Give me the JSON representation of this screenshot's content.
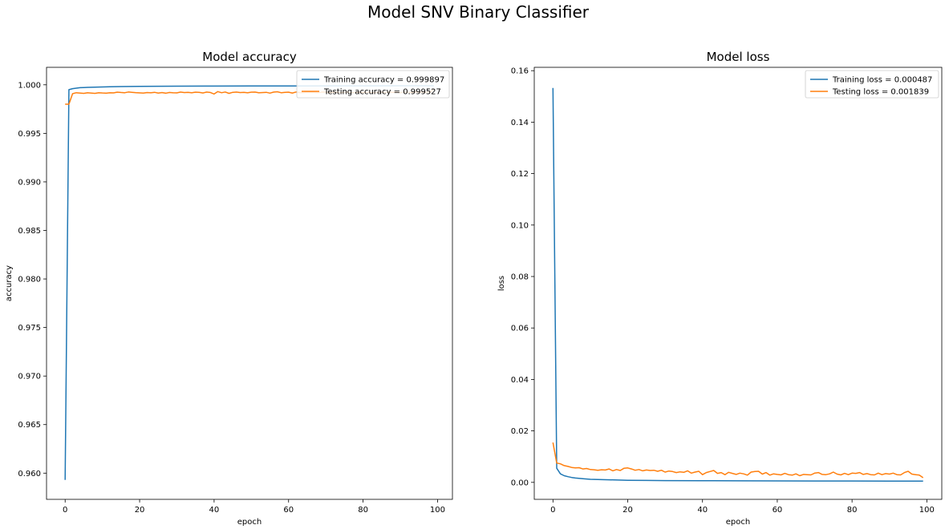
{
  "figure": {
    "suptitle": "Model SNV Binary Classifier"
  },
  "colors": {
    "train": "#1f77b4",
    "test": "#ff7f0e"
  },
  "chart_data": [
    {
      "type": "line",
      "title": "Model accuracy",
      "xlabel": "epoch",
      "ylabel": "accuracy",
      "xlim": [
        -5,
        104
      ],
      "ylim": [
        0.9573,
        1.0018
      ],
      "xticks": [
        0,
        20,
        40,
        60,
        80,
        100
      ],
      "yticks": [
        0.96,
        0.965,
        0.97,
        0.975,
        0.98,
        0.985,
        0.99,
        0.995,
        1.0
      ],
      "ytick_labels": [
        "0.960",
        "0.965",
        "0.970",
        "0.975",
        "0.980",
        "0.985",
        "0.990",
        "0.995",
        "1.000"
      ],
      "grid": false,
      "legend_position": "upper right",
      "series": [
        {
          "name": "Training accuracy = 0.999897",
          "color_key": "train",
          "x": [
            0,
            1,
            2,
            3,
            4,
            5,
            6,
            8,
            10,
            12,
            15,
            20,
            25,
            30,
            40,
            50,
            60,
            70,
            80,
            90,
            99
          ],
          "y": [
            0.9593,
            0.9995,
            0.9996,
            0.99965,
            0.9997,
            0.99972,
            0.99974,
            0.99976,
            0.99978,
            0.9998,
            0.99982,
            0.99984,
            0.99985,
            0.99986,
            0.99987,
            0.99988,
            0.99988,
            0.99989,
            0.99989,
            0.9999,
            0.9999
          ]
        },
        {
          "name": "Testing accuracy = 0.999527",
          "color_key": "test",
          "x": [
            0,
            1,
            2,
            3,
            4,
            5,
            6,
            7,
            8,
            9,
            10,
            11,
            12,
            13,
            14,
            15,
            16,
            17,
            18,
            19,
            20,
            21,
            22,
            23,
            24,
            25,
            26,
            27,
            28,
            29,
            30,
            31,
            32,
            33,
            34,
            35,
            36,
            37,
            38,
            39,
            40,
            41,
            42,
            43,
            44,
            45,
            46,
            47,
            48,
            49,
            50,
            51,
            52,
            53,
            54,
            55,
            56,
            57,
            58,
            59,
            60,
            61,
            62,
            63,
            64,
            65,
            66,
            67,
            68,
            69,
            70,
            71,
            72,
            73,
            74,
            75,
            76,
            77,
            78,
            79,
            80,
            81,
            82,
            83,
            84,
            85,
            86,
            87,
            88,
            89,
            90,
            91,
            92,
            93,
            94,
            95,
            96,
            97,
            98,
            99
          ],
          "y": [
            0.998,
            0.998,
            0.99908,
            0.99918,
            0.99915,
            0.99912,
            0.99918,
            0.99915,
            0.99912,
            0.99918,
            0.99916,
            0.99914,
            0.99918,
            0.99917,
            0.99924,
            0.99921,
            0.99918,
            0.99926,
            0.99922,
            0.99919,
            0.99917,
            0.99915,
            0.9992,
            0.99918,
            0.99922,
            0.99915,
            0.9992,
            0.99913,
            0.99921,
            0.99918,
            0.99917,
            0.99925,
            0.9992,
            0.99922,
            0.99918,
            0.99924,
            0.99922,
            0.99916,
            0.99925,
            0.99921,
            0.99905,
            0.9993,
            0.99918,
            0.99926,
            0.99912,
            0.99922,
            0.99925,
            0.9992,
            0.99922,
            0.99918,
            0.99924,
            0.99925,
            0.99918,
            0.9992,
            0.99922,
            0.99914,
            0.99925,
            0.99928,
            0.99918,
            0.99922,
            0.99924,
            0.99915,
            0.99926,
            0.9992,
            0.99918,
            0.99924,
            0.99922,
            0.9992,
            0.99918,
            0.99926,
            0.99924,
            0.99919,
            0.99922,
            0.99925,
            0.99918,
            0.99924,
            0.99926,
            0.99918,
            0.99922,
            0.99924,
            0.9992,
            0.99926,
            0.99922,
            0.99918,
            0.99927,
            0.99924,
            0.9992,
            0.99926,
            0.99922,
            0.99924,
            0.99918,
            0.99926,
            0.99924,
            0.9992,
            0.99928,
            0.99924,
            0.99926,
            0.99922,
            0.99925,
            0.99953
          ]
        }
      ]
    },
    {
      "type": "line",
      "title": "Model loss",
      "xlabel": "epoch",
      "ylabel": "loss",
      "xlim": [
        -5,
        104
      ],
      "ylim": [
        -0.0066,
        0.1613
      ],
      "xticks": [
        0,
        20,
        40,
        60,
        80,
        100
      ],
      "yticks": [
        0.0,
        0.02,
        0.04,
        0.06,
        0.08,
        0.1,
        0.12,
        0.14,
        0.16
      ],
      "ytick_labels": [
        "0.00",
        "0.02",
        "0.04",
        "0.06",
        "0.08",
        "0.10",
        "0.12",
        "0.14",
        "0.16"
      ],
      "grid": false,
      "legend_position": "upper right",
      "series": [
        {
          "name": "Training loss = 0.000487",
          "color_key": "train",
          "x": [
            0,
            1,
            2,
            3,
            4,
            5,
            6,
            8,
            10,
            12,
            15,
            20,
            25,
            30,
            40,
            50,
            60,
            70,
            80,
            90,
            99
          ],
          "y": [
            0.1533,
            0.0055,
            0.0033,
            0.0026,
            0.0022,
            0.0019,
            0.0017,
            0.0014,
            0.0012,
            0.0011,
            0.001,
            0.0008,
            0.00075,
            0.0007,
            0.00065,
            0.0006,
            0.00057,
            0.00054,
            0.00052,
            0.0005,
            0.000487
          ]
        },
        {
          "name": "Testing loss = 0.001839",
          "color_key": "test",
          "x": [
            0,
            1,
            2,
            3,
            4,
            5,
            6,
            7,
            8,
            9,
            10,
            11,
            12,
            13,
            14,
            15,
            16,
            17,
            18,
            19,
            20,
            21,
            22,
            23,
            24,
            25,
            26,
            27,
            28,
            29,
            30,
            31,
            32,
            33,
            34,
            35,
            36,
            37,
            38,
            39,
            40,
            41,
            42,
            43,
            44,
            45,
            46,
            47,
            48,
            49,
            50,
            51,
            52,
            53,
            54,
            55,
            56,
            57,
            58,
            59,
            60,
            61,
            62,
            63,
            64,
            65,
            66,
            67,
            68,
            69,
            70,
            71,
            72,
            73,
            74,
            75,
            76,
            77,
            78,
            79,
            80,
            81,
            82,
            83,
            84,
            85,
            86,
            87,
            88,
            89,
            90,
            91,
            92,
            93,
            94,
            95,
            96,
            97,
            98,
            99
          ],
          "y": [
            0.0155,
            0.0075,
            0.0072,
            0.0065,
            0.0062,
            0.0058,
            0.0056,
            0.0057,
            0.0052,
            0.0054,
            0.005,
            0.0049,
            0.0047,
            0.0049,
            0.0048,
            0.0052,
            0.0045,
            0.005,
            0.0046,
            0.0055,
            0.0056,
            0.0052,
            0.0047,
            0.005,
            0.0045,
            0.0048,
            0.0046,
            0.0047,
            0.0043,
            0.0047,
            0.004,
            0.0044,
            0.0042,
            0.0038,
            0.0041,
            0.0039,
            0.0045,
            0.0036,
            0.004,
            0.0043,
            0.003,
            0.0038,
            0.0042,
            0.0046,
            0.0035,
            0.0038,
            0.003,
            0.0039,
            0.0035,
            0.0031,
            0.0036,
            0.0033,
            0.0028,
            0.004,
            0.0042,
            0.0043,
            0.0032,
            0.0038,
            0.0028,
            0.0033,
            0.0031,
            0.0029,
            0.0035,
            0.003,
            0.0028,
            0.0033,
            0.0026,
            0.0031,
            0.003,
            0.0029,
            0.0036,
            0.0038,
            0.0031,
            0.003,
            0.0033,
            0.004,
            0.0032,
            0.0029,
            0.0035,
            0.003,
            0.0036,
            0.0035,
            0.0038,
            0.0031,
            0.0034,
            0.003,
            0.0029,
            0.0036,
            0.003,
            0.0034,
            0.0032,
            0.0036,
            0.003,
            0.0029,
            0.0038,
            0.0043,
            0.0032,
            0.003,
            0.0028,
            0.0018
          ]
        }
      ]
    }
  ]
}
